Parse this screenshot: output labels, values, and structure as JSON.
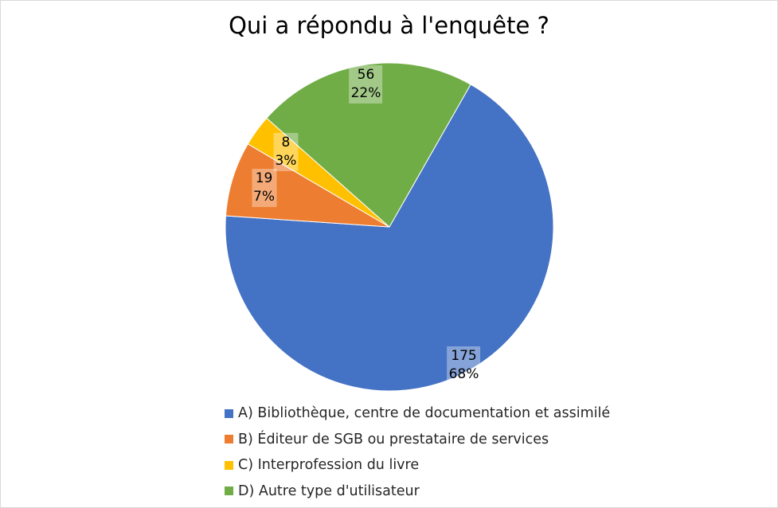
{
  "chart_data": {
    "type": "pie",
    "title": "Qui a répondu à l'enquête ?",
    "legend_position": "bottom",
    "slices": [
      {
        "label": "A) Bibliothèque, centre de documentation et assimilé",
        "value": 175,
        "percent_label": "68%",
        "color": "#4472c4"
      },
      {
        "label": "B) Éditeur de SGB ou prestataire de services",
        "value": 19,
        "percent_label": "7%",
        "color": "#ed7d31"
      },
      {
        "label": "C) Interprofession du livre",
        "value": 8,
        "percent_label": "3%",
        "color": "#ffc000"
      },
      {
        "label": "D) Autre type d'utilisateur",
        "value": 56,
        "percent_label": "22%",
        "color": "#70ad47"
      }
    ]
  }
}
